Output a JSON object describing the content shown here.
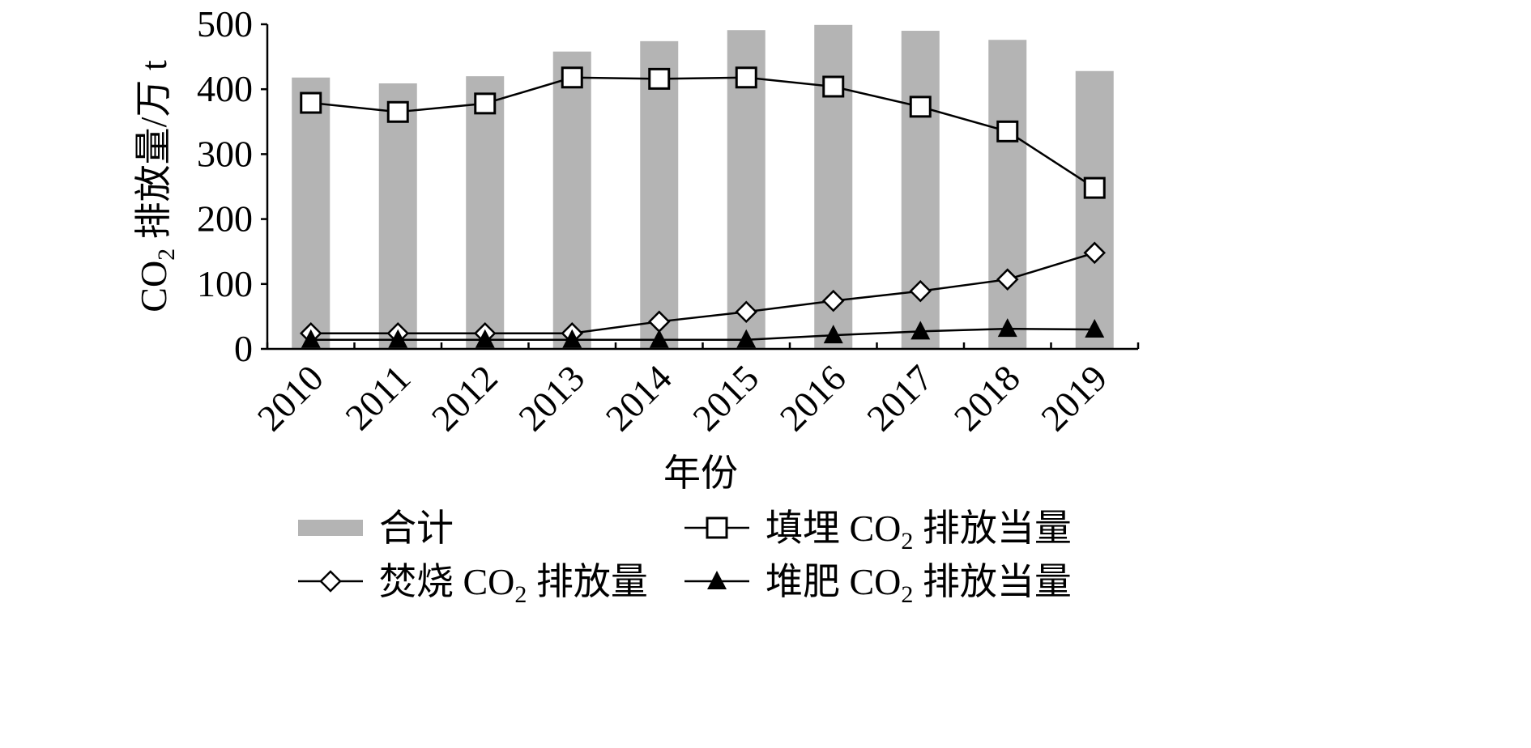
{
  "chart_data": {
    "type": "bar",
    "title": "",
    "xlabel": "年份",
    "ylabel_parts": [
      "CO",
      "2",
      " 排放量/万 t"
    ],
    "ylim": [
      0,
      500
    ],
    "yticks": [
      "0",
      "100",
      "200",
      "300",
      "400",
      "500"
    ],
    "ytick_values": [
      0,
      100,
      200,
      300,
      400,
      500
    ],
    "grid": false,
    "legend_placement": "bottom",
    "categories": [
      "2010",
      "2011",
      "2012",
      "2013",
      "2014",
      "2015",
      "2016",
      "2017",
      "2018",
      "2019"
    ],
    "series": [
      {
        "name": "合计",
        "name_parts": [
          "合计",
          "",
          ""
        ],
        "kind": "bar",
        "color": "#b4b4b4",
        "values": [
          418,
          409,
          420,
          458,
          474,
          491,
          499,
          490,
          476,
          428
        ]
      },
      {
        "name": "填埋 CO2 排放当量",
        "name_parts": [
          "填埋 CO",
          "2",
          " 排放当量"
        ],
        "kind": "line",
        "marker": "square",
        "values": [
          379,
          365,
          378,
          418,
          416,
          418,
          404,
          373,
          335,
          248
        ]
      },
      {
        "name": "焚烧 CO2 排放量",
        "name_parts": [
          "焚烧 CO",
          "2",
          " 排放量"
        ],
        "kind": "line",
        "marker": "diamond",
        "values": [
          24,
          24,
          24,
          24,
          42,
          57,
          74,
          89,
          107,
          148
        ]
      },
      {
        "name": "堆肥 CO2 排放当量",
        "name_parts": [
          "堆肥 CO",
          "2",
          " 排放当量"
        ],
        "kind": "line",
        "marker": "triangle",
        "values": [
          14,
          14,
          14,
          14,
          14,
          14,
          21,
          27,
          31,
          30
        ]
      }
    ]
  }
}
